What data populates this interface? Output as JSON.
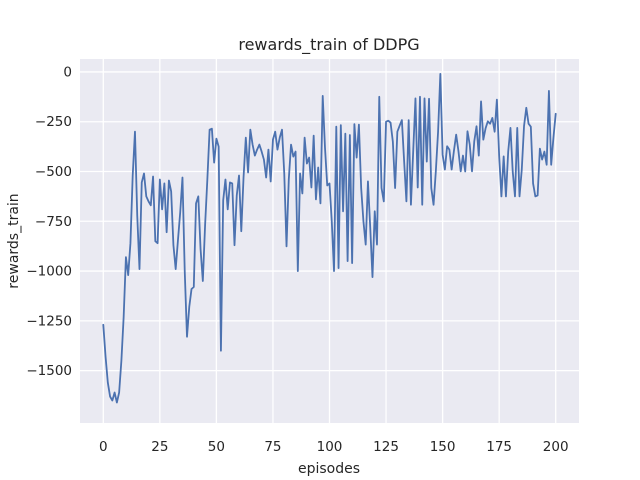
{
  "figure": {
    "title": "rewards_train of DDPG",
    "xlabel": "episodes",
    "ylabel": "rewards_train"
  },
  "chart_data": {
    "type": "line",
    "title": "rewards_train of DDPG",
    "xlabel": "episodes",
    "ylabel": "rewards_train",
    "legend": null,
    "grid": true,
    "style": "seaborn-darkgrid",
    "axes_bg_color": "#EAEAF2",
    "grid_color": "#FFFFFF",
    "line_color": "#4C72B0",
    "text_color": "#262626",
    "xlim": [
      -10.3,
      210.3
    ],
    "ylim": [
      -1763,
      65
    ],
    "xticks": [
      0,
      25,
      50,
      75,
      100,
      125,
      150,
      175,
      200
    ],
    "yticks": [
      0,
      -250,
      -500,
      -750,
      -1000,
      -1250,
      -1500
    ],
    "x": [
      0,
      1,
      2,
      3,
      4,
      5,
      6,
      7,
      8,
      9,
      10,
      11,
      12,
      13,
      14,
      15,
      16,
      17,
      18,
      19,
      20,
      21,
      22,
      23,
      24,
      25,
      26,
      27,
      28,
      29,
      30,
      31,
      32,
      33,
      34,
      35,
      36,
      37,
      38,
      39,
      40,
      41,
      42,
      43,
      44,
      45,
      46,
      47,
      48,
      49,
      50,
      51,
      52,
      53,
      54,
      55,
      56,
      57,
      58,
      59,
      60,
      61,
      62,
      63,
      64,
      65,
      66,
      67,
      68,
      69,
      70,
      71,
      72,
      73,
      74,
      75,
      76,
      77,
      78,
      79,
      80,
      81,
      82,
      83,
      84,
      85,
      86,
      87,
      88,
      89,
      90,
      91,
      92,
      93,
      94,
      95,
      96,
      97,
      98,
      99,
      100,
      101,
      102,
      103,
      104,
      105,
      106,
      107,
      108,
      109,
      110,
      111,
      112,
      113,
      114,
      115,
      116,
      117,
      118,
      119,
      120,
      121,
      122,
      123,
      124,
      125,
      126,
      127,
      128,
      129,
      130,
      131,
      132,
      133,
      134,
      135,
      136,
      137,
      138,
      139,
      140,
      141,
      142,
      143,
      144,
      145,
      146,
      147,
      148,
      149,
      150,
      151,
      152,
      153,
      154,
      155,
      156,
      157,
      158,
      159,
      160,
      161,
      162,
      163,
      164,
      165,
      166,
      167,
      168,
      169,
      170,
      171,
      172,
      173,
      174,
      175,
      176,
      177,
      178,
      179,
      180,
      181,
      182,
      183,
      184,
      185,
      186,
      187,
      188,
      189,
      190,
      191,
      192,
      193,
      194,
      195,
      196,
      197,
      198,
      199,
      200
    ],
    "values": [
      -1270,
      -1430,
      -1560,
      -1630,
      -1650,
      -1610,
      -1660,
      -1610,
      -1450,
      -1230,
      -930,
      -1020,
      -860,
      -520,
      -300,
      -720,
      -990,
      -555,
      -510,
      -625,
      -650,
      -670,
      -525,
      -850,
      -860,
      -540,
      -690,
      -560,
      -805,
      -545,
      -600,
      -870,
      -990,
      -845,
      -705,
      -530,
      -1000,
      -1330,
      -1180,
      -1090,
      -1080,
      -660,
      -625,
      -890,
      -1050,
      -770,
      -540,
      -290,
      -285,
      -455,
      -335,
      -375,
      -1400,
      -645,
      -540,
      -690,
      -555,
      -560,
      -870,
      -620,
      -520,
      -800,
      -530,
      -330,
      -505,
      -290,
      -365,
      -420,
      -390,
      -365,
      -400,
      -440,
      -530,
      -390,
      -550,
      -340,
      -300,
      -390,
      -330,
      -290,
      -510,
      -876,
      -540,
      -365,
      -425,
      -400,
      -1000,
      -510,
      -610,
      -330,
      -460,
      -430,
      -580,
      -320,
      -640,
      -480,
      -660,
      -120,
      -380,
      -570,
      -560,
      -750,
      -1000,
      -275,
      -985,
      -267,
      -700,
      -310,
      -950,
      -317,
      -960,
      -262,
      -430,
      -265,
      -583,
      -750,
      -867,
      -550,
      -780,
      -1030,
      -700,
      -867,
      -125,
      -583,
      -650,
      -250,
      -245,
      -255,
      -350,
      -583,
      -300,
      -270,
      -242,
      -450,
      -650,
      -242,
      -667,
      -400,
      -133,
      -580,
      -125,
      -667,
      -133,
      -450,
      -135,
      -583,
      -667,
      -500,
      -300,
      -10,
      -415,
      -490,
      -373,
      -390,
      -490,
      -397,
      -315,
      -397,
      -499,
      -420,
      -500,
      -298,
      -365,
      -499,
      -348,
      -273,
      -420,
      -148,
      -340,
      -283,
      -248,
      -260,
      -231,
      -300,
      -139,
      -420,
      -625,
      -424,
      -625,
      -400,
      -281,
      -500,
      -625,
      -281,
      -625,
      -490,
      -272,
      -180,
      -260,
      -275,
      -560,
      -625,
      -620,
      -385,
      -440,
      -400,
      -466,
      -95,
      -466,
      -330,
      -210
    ]
  }
}
